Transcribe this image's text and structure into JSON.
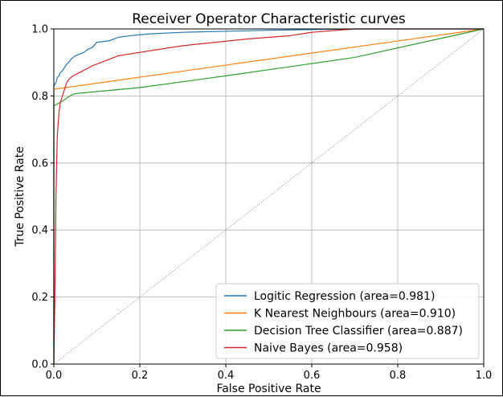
{
  "chart_data": {
    "type": "line",
    "title": "Receiver Operator Characteristic curves",
    "xlabel": "False Positive Rate",
    "ylabel": "True Positive Rate",
    "xlim": [
      0.0,
      1.0
    ],
    "ylim": [
      0.0,
      1.0
    ],
    "x_ticks": [
      "0.0",
      "0.2",
      "0.4",
      "0.6",
      "0.8",
      "1.0"
    ],
    "y_ticks": [
      "0.0",
      "0.2",
      "0.4",
      "0.6",
      "0.8",
      "1.0"
    ],
    "grid": true,
    "legend_position": "lower-right",
    "reference_line": {
      "x": [
        0,
        1
      ],
      "y": [
        0,
        1
      ],
      "color": "#808080",
      "style": "dotted"
    },
    "series": [
      {
        "name": "Logitic Regression (area=0.981)",
        "color": "#1f77b4",
        "points": [
          [
            0,
            0
          ],
          [
            0,
            0.83
          ],
          [
            0.005,
            0.84
          ],
          [
            0.008,
            0.855
          ],
          [
            0.012,
            0.86
          ],
          [
            0.015,
            0.87
          ],
          [
            0.02,
            0.875
          ],
          [
            0.025,
            0.885
          ],
          [
            0.03,
            0.895
          ],
          [
            0.035,
            0.9
          ],
          [
            0.04,
            0.91
          ],
          [
            0.045,
            0.915
          ],
          [
            0.05,
            0.92
          ],
          [
            0.06,
            0.925
          ],
          [
            0.07,
            0.93
          ],
          [
            0.08,
            0.94
          ],
          [
            0.09,
            0.945
          ],
          [
            0.1,
            0.96
          ],
          [
            0.13,
            0.965
          ],
          [
            0.15,
            0.975
          ],
          [
            0.18,
            0.98
          ],
          [
            0.22,
            0.985
          ],
          [
            0.3,
            0.99
          ],
          [
            0.4,
            0.993
          ],
          [
            0.5,
            0.996
          ],
          [
            0.6,
            0.998
          ],
          [
            0.7,
            1.0
          ],
          [
            1.0,
            1.0
          ]
        ]
      },
      {
        "name": "K Nearest Neighbours (area=0.910)",
        "color": "#ff7f0e",
        "points": [
          [
            0,
            0
          ],
          [
            0,
            0.82
          ],
          [
            1.0,
            1.0
          ]
        ]
      },
      {
        "name": "Decision Tree Classifier  (area=0.887)",
        "color": "#2ca02c",
        "points": [
          [
            0,
            0
          ],
          [
            0,
            0.77
          ],
          [
            0.02,
            0.785
          ],
          [
            0.04,
            0.802
          ],
          [
            0.05,
            0.807
          ],
          [
            0.2,
            0.825
          ],
          [
            0.4,
            0.86
          ],
          [
            0.7,
            0.915
          ],
          [
            1.0,
            1.0
          ]
        ]
      },
      {
        "name": "Naive Bayes (area=0.958)",
        "color": "#d62728",
        "points": [
          [
            0,
            0
          ],
          [
            0.003,
            0.25
          ],
          [
            0.005,
            0.5
          ],
          [
            0.008,
            0.68
          ],
          [
            0.012,
            0.75
          ],
          [
            0.015,
            0.78
          ],
          [
            0.02,
            0.8
          ],
          [
            0.025,
            0.82
          ],
          [
            0.03,
            0.84
          ],
          [
            0.035,
            0.85
          ],
          [
            0.045,
            0.86
          ],
          [
            0.06,
            0.87
          ],
          [
            0.075,
            0.88
          ],
          [
            0.09,
            0.89
          ],
          [
            0.11,
            0.9
          ],
          [
            0.13,
            0.91
          ],
          [
            0.15,
            0.92
          ],
          [
            0.2,
            0.93
          ],
          [
            0.25,
            0.94
          ],
          [
            0.3,
            0.95
          ],
          [
            0.45,
            0.97
          ],
          [
            0.55,
            0.98
          ],
          [
            0.6,
            0.99
          ],
          [
            0.7,
            1.0
          ],
          [
            1.0,
            1.0
          ]
        ]
      }
    ]
  }
}
